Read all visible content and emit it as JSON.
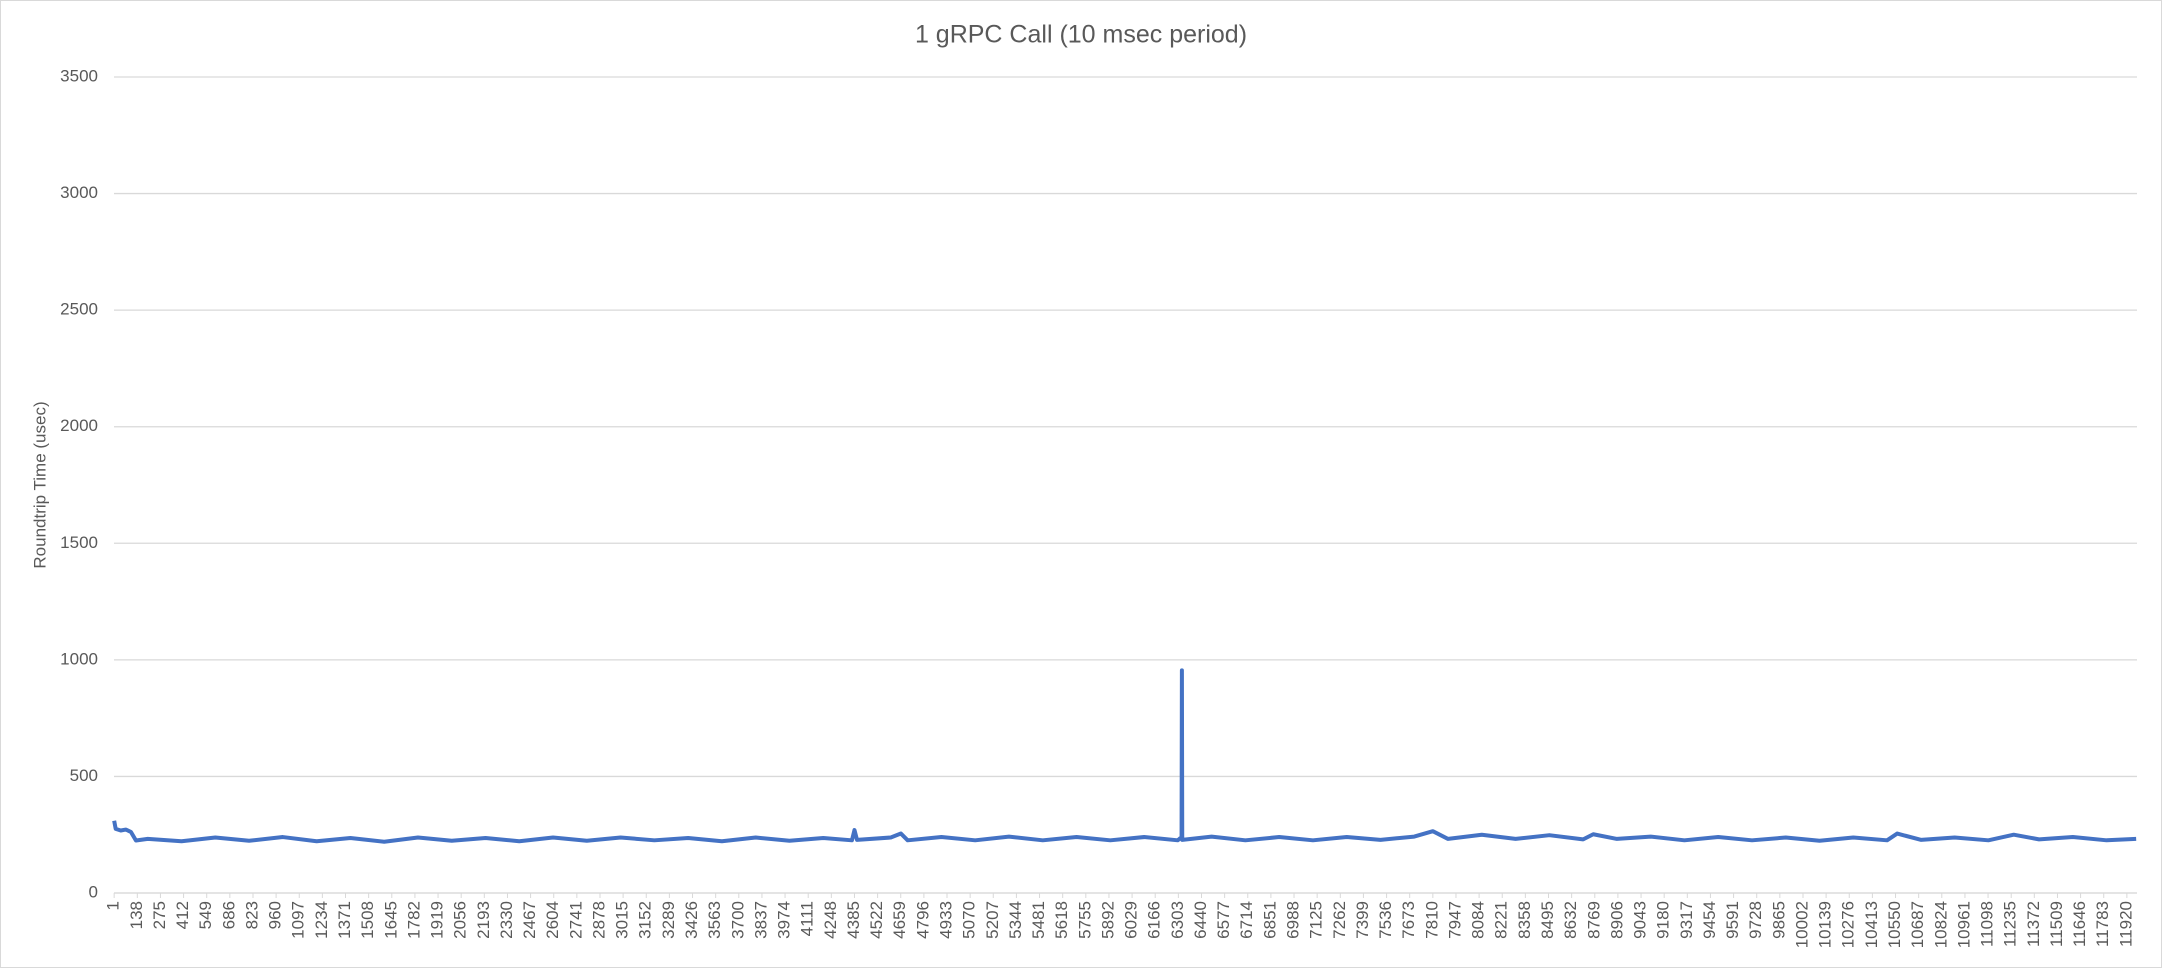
{
  "chart_data": {
    "type": "line",
    "title": "1 gRPC Call (10 msec period)",
    "y_label": "Roundtrip Time (usec)",
    "color": "#4472c4",
    "grid": true,
    "xlim": [
      0,
      11980
    ],
    "xticks": [
      1,
      138,
      275,
      412,
      549,
      686,
      823,
      960,
      1097,
      1234,
      1371,
      1508,
      1645,
      1782,
      1919,
      2056,
      2193,
      2330,
      2467,
      2604,
      2741,
      2878,
      3015,
      3152,
      3289,
      3426,
      3563,
      3700,
      3837,
      3974,
      4111,
      4248,
      4385,
      4522,
      4659,
      4796,
      4933,
      5070,
      5207,
      5344,
      5481,
      5618,
      5755,
      5892,
      6029,
      6166,
      6303,
      6440,
      6577,
      6714,
      6851,
      6988,
      7125,
      7262,
      7399,
      7536,
      7673,
      7810,
      7947,
      8084,
      8221,
      8358,
      8495,
      8632,
      8769,
      8906,
      9043,
      9180,
      9317,
      9454,
      9591,
      9728,
      9865,
      10002,
      10139,
      10276,
      10413,
      10550,
      10687,
      10824,
      10961,
      11098,
      11235,
      11372,
      11509,
      11646,
      11783,
      11920
    ],
    "ylim": [
      0,
      3500
    ],
    "yticks": [
      0,
      500,
      1000,
      1500,
      2000,
      2500,
      3000,
      3500
    ],
    "x": [
      1,
      10,
      40,
      70,
      100,
      130,
      200,
      400,
      600,
      800,
      1000,
      1200,
      1400,
      1600,
      1800,
      2000,
      2200,
      2400,
      2600,
      2800,
      3000,
      3200,
      3400,
      3600,
      3800,
      4000,
      4200,
      4370,
      4385,
      4400,
      4600,
      4660,
      4700,
      4900,
      5100,
      5300,
      5500,
      5700,
      5900,
      6100,
      6300,
      6322,
      6324,
      6326,
      6500,
      6700,
      6900,
      7100,
      7300,
      7500,
      7700,
      7810,
      7900,
      8100,
      8300,
      8500,
      8700,
      8760,
      8900,
      9100,
      9300,
      9500,
      9700,
      9900,
      10100,
      10300,
      10500,
      10560,
      10700,
      10900,
      11100,
      11250,
      11400,
      11600,
      11800,
      11975
    ],
    "values": [
      310,
      275,
      268,
      272,
      262,
      225,
      232,
      222,
      238,
      224,
      240,
      222,
      236,
      220,
      238,
      224,
      236,
      222,
      238,
      224,
      238,
      226,
      236,
      222,
      238,
      224,
      236,
      226,
      270,
      228,
      238,
      255,
      226,
      240,
      226,
      242,
      226,
      240,
      226,
      240,
      226,
      240,
      955,
      228,
      242,
      226,
      240,
      226,
      240,
      228,
      242,
      265,
      232,
      250,
      232,
      248,
      230,
      252,
      232,
      242,
      226,
      240,
      226,
      238,
      224,
      238,
      226,
      255,
      228,
      238,
      226,
      250,
      230,
      240,
      226,
      232
    ]
  }
}
